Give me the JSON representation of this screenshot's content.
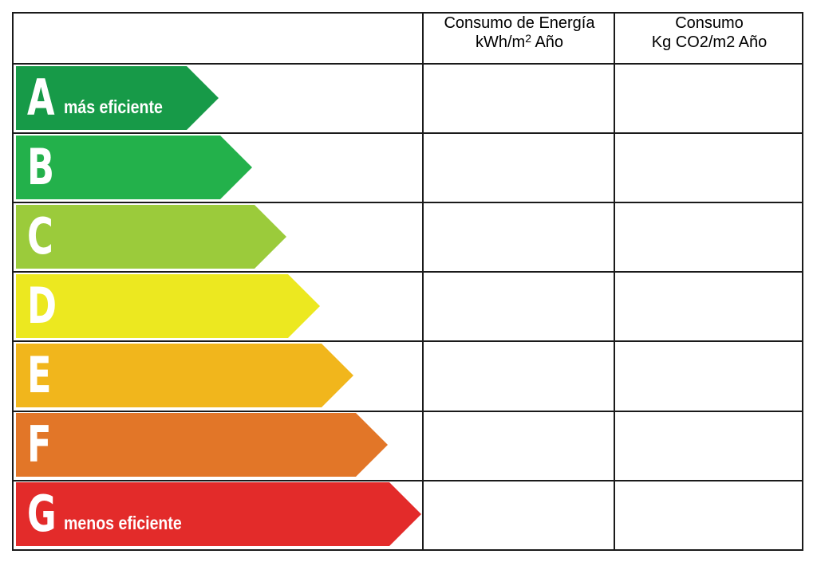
{
  "header": {
    "energy_line1": "Consumo de Energía",
    "energy_line2_main": "kWh/m",
    "energy_line2_sup": "2",
    "energy_line2_tail": " Año",
    "co2_line1": "Consumo",
    "co2_line2": "Kg CO2/m2 Año"
  },
  "ratings": [
    {
      "letter": "A",
      "label": "más eficiente",
      "color": "#179a48"
    },
    {
      "letter": "B",
      "label": "",
      "color": "#23b14b"
    },
    {
      "letter": "C",
      "label": "",
      "color": "#9bcb3b"
    },
    {
      "letter": "D",
      "label": "",
      "color": "#ece820"
    },
    {
      "letter": "E",
      "label": "",
      "color": "#f1b61c"
    },
    {
      "letter": "F",
      "label": "",
      "color": "#e27628"
    },
    {
      "letter": "G",
      "label": "menos eficiente",
      "color": "#e32b2a"
    }
  ],
  "colors": {
    "border": "#1a1a1a",
    "background": "#ffffff"
  }
}
